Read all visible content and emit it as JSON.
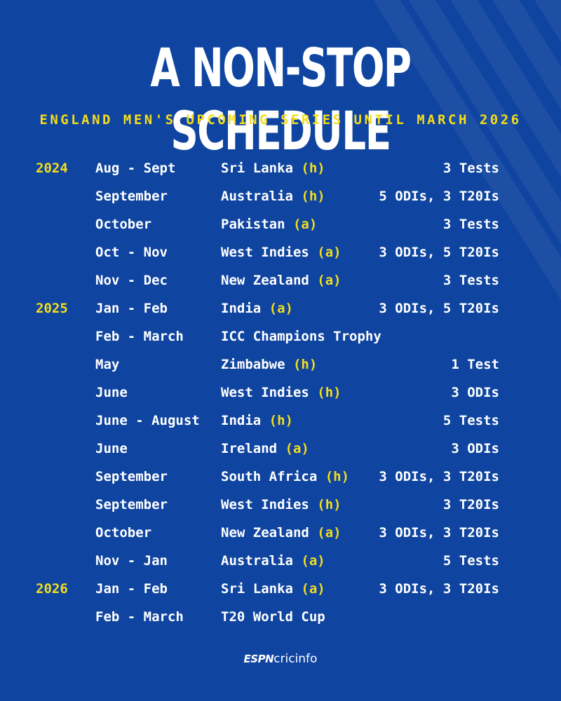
{
  "header": {
    "title": "A NON-STOP SCHEDULE",
    "subtitle": "ENGLAND MEN'S UPCOMING SERIES UNTIL MARCH 2026"
  },
  "rows": [
    {
      "year": "2024",
      "period": "Aug - Sept",
      "opponent": "Sri Lanka",
      "venue": "(h)",
      "format": "3 Tests"
    },
    {
      "year": "",
      "period": "September",
      "opponent": "Australia",
      "venue": "(h)",
      "format": "5 ODIs, 3 T20Is"
    },
    {
      "year": "",
      "period": "October",
      "opponent": "Pakistan",
      "venue": "(a)",
      "format": "3 Tests"
    },
    {
      "year": "",
      "period": "Oct - Nov",
      "opponent": "West Indies",
      "venue": "(a)",
      "format": "3 ODIs, 5 T20Is"
    },
    {
      "year": "",
      "period": "Nov - Dec",
      "opponent": "New Zealand",
      "venue": "(a)",
      "format": "3 Tests"
    },
    {
      "year": "2025",
      "period": "Jan - Feb",
      "opponent": "India",
      "venue": "(a)",
      "format": "3 ODIs, 5 T20Is"
    },
    {
      "year": "",
      "period": "Feb - March",
      "opponent": "ICC Champions Trophy",
      "venue": "",
      "format": ""
    },
    {
      "year": "",
      "period": "May",
      "opponent": "Zimbabwe",
      "venue": "(h)",
      "format": "1 Test"
    },
    {
      "year": "",
      "period": "June",
      "opponent": "West Indies",
      "venue": "(h)",
      "format": "3 ODIs"
    },
    {
      "year": "",
      "period": "June - August",
      "opponent": "India",
      "venue": "(h)",
      "format": "5 Tests"
    },
    {
      "year": "",
      "period": "June",
      "opponent": "Ireland",
      "venue": "(a)",
      "format": "3 ODIs"
    },
    {
      "year": "",
      "period": "September",
      "opponent": "South Africa",
      "venue": "(h)",
      "format": "3 ODIs, 3 T20Is"
    },
    {
      "year": "",
      "period": "September",
      "opponent": "West Indies",
      "venue": "(h)",
      "format": "3 T20Is"
    },
    {
      "year": "",
      "period": "October",
      "opponent": "New Zealand",
      "venue": "(a)",
      "format": "3 ODIs, 3 T20Is"
    },
    {
      "year": "",
      "period": "Nov - Jan",
      "opponent": "Australia",
      "venue": "(a)",
      "format": "5 Tests"
    },
    {
      "year": "2026",
      "period": "Jan - Feb",
      "opponent": "Sri Lanka",
      "venue": "(a)",
      "format": "3 ODIs, 3 T20Is"
    },
    {
      "year": "",
      "period": "Feb - March",
      "opponent": "T20 World Cup",
      "venue": "",
      "format": ""
    }
  ],
  "footer": {
    "logo_espn": "ESPN",
    "logo_cricinfo": "cricinfo"
  },
  "colors": {
    "background": "#0f45a0",
    "accent": "#f5dd1a",
    "text": "#ffffff"
  }
}
